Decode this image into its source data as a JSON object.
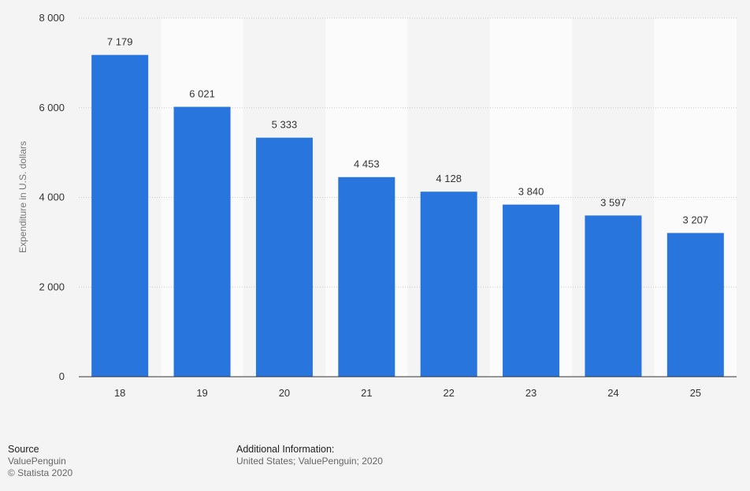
{
  "chart_data": {
    "type": "bar",
    "categories": [
      "18",
      "19",
      "20",
      "21",
      "22",
      "23",
      "24",
      "25"
    ],
    "values": [
      7179,
      6021,
      5333,
      4453,
      4128,
      3840,
      3597,
      3207
    ],
    "value_labels": [
      "7 179",
      "6 021",
      "5 333",
      "4 453",
      "4 128",
      "3 840",
      "3 597",
      "3 207"
    ],
    "ylabel": "Expenditure in U.S. dollars",
    "ylim": [
      0,
      8000
    ],
    "yticks": [
      0,
      2000,
      4000,
      6000,
      8000
    ],
    "ytick_labels": [
      "0",
      "2 000",
      "4 000",
      "6 000",
      "8 000"
    ],
    "bar_color": "#2875de",
    "grid": true
  },
  "footer": {
    "source_heading": "Source",
    "source_name": "ValuePenguin",
    "copyright": "© Statista 2020",
    "info_heading": "Additional Information:",
    "info_text": "United States; ValuePenguin; 2020"
  }
}
